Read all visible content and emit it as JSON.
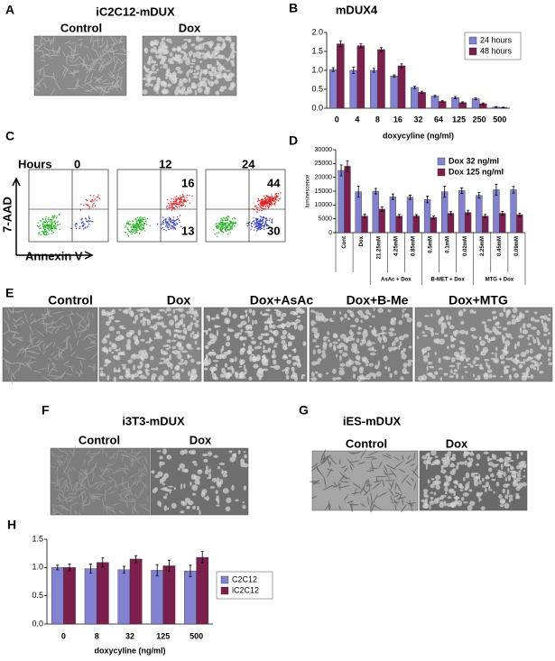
{
  "figure": {
    "panels": [
      "A",
      "B",
      "C",
      "D",
      "E",
      "F",
      "G",
      "H"
    ],
    "a": {
      "title": "iC2C12-mDUX",
      "labels": [
        "Control",
        "Dox"
      ]
    },
    "c": {
      "hours_label": "Hours",
      "hours": [
        0,
        12,
        24
      ],
      "upper_right": [
        16,
        44
      ],
      "lower_right": [
        13,
        30
      ],
      "y_label": "7-AAD",
      "x_label": "Annexin V"
    },
    "e": {
      "labels": [
        "Control",
        "Dox",
        "Dox+AsAc",
        "Dox+B-Me",
        "Dox+MTG"
      ]
    },
    "f": {
      "title": "i3T3-mDUX",
      "labels": [
        "Control",
        "Dox"
      ]
    },
    "g": {
      "title": "iES-mDUX",
      "labels": [
        "Control",
        "Dox"
      ]
    }
  },
  "chart_data": [
    {
      "type": "bar",
      "title": "mDUX4",
      "x_label": "doxycyline (ng/ml)",
      "categories": [
        "0",
        "4",
        "8",
        "16",
        "32",
        "64",
        "125",
        "250",
        "500"
      ],
      "series": [
        {
          "name": "24 hours",
          "color": "#8282d2",
          "values": [
            1.02,
            1.0,
            1.0,
            0.85,
            0.55,
            0.32,
            0.28,
            0.25,
            0.03
          ],
          "errors": [
            0.05,
            0.08,
            0.05,
            0.03,
            0.03,
            0.02,
            0.03,
            0.02,
            0.01
          ]
        },
        {
          "name": "48 hours",
          "color": "#7d1f4c",
          "values": [
            1.7,
            1.65,
            1.55,
            1.12,
            0.42,
            0.18,
            0.15,
            0.12,
            0.02
          ],
          "errors": [
            0.08,
            0.05,
            0.05,
            0.05,
            0.03,
            0.02,
            0.02,
            0.02,
            0.01
          ]
        }
      ],
      "ylim": [
        0,
        2
      ],
      "yticks": [
        {
          "value": 0,
          "label": "0.0"
        },
        0.5,
        {
          "value": 1,
          "label": "1.0"
        },
        1.5,
        {
          "value": 2,
          "label": "2.0"
        }
      ]
    },
    {
      "type": "bar",
      "y_label": "luminescence",
      "categories": [
        "Cont",
        "Dox",
        "21.25mM",
        "4.25mM",
        "0.85mM",
        "0.5mM",
        "0.1mM",
        "0.02mM",
        "2.25mM",
        "0.45mM",
        "0.09mM"
      ],
      "groups": [
        "AsAc + Dox",
        "B-MET + Dox",
        "MTG + Dox"
      ],
      "series": [
        {
          "name": "Dox 32 ng/ml",
          "color": "#8282d2",
          "values": [
            22500,
            14800,
            15000,
            13000,
            12800,
            12000,
            14800,
            15200,
            13500,
            15500,
            15500
          ],
          "errors": [
            2000,
            2000,
            1000,
            1000,
            800,
            1200,
            2000,
            1000,
            1000,
            2000,
            1200
          ]
        },
        {
          "name": "Dox 125 ng/ml",
          "color": "#7d1f4c",
          "values": [
            24000,
            6000,
            8500,
            6000,
            6000,
            5500,
            7000,
            7300,
            6000,
            7000,
            6500
          ],
          "errors": [
            2000,
            700,
            800,
            600,
            500,
            500,
            600,
            800,
            600,
            700,
            600
          ]
        }
      ],
      "ylim": [
        0,
        30000
      ],
      "yticks": [
        0,
        5000,
        10000,
        15000,
        20000,
        25000,
        30000
      ]
    },
    {
      "type": "bar",
      "x_label": "doxycyline (ng/ml)",
      "categories": [
        "0",
        "8",
        "32",
        "125",
        "500"
      ],
      "series": [
        {
          "name": "C2C12",
          "color": "#8282d2",
          "values": [
            1.0,
            0.98,
            0.96,
            0.95,
            0.94
          ],
          "errors": [
            0.04,
            0.08,
            0.06,
            0.1,
            0.1
          ]
        },
        {
          "name": "iC2C12",
          "color": "#7d1f4c",
          "values": [
            1.0,
            1.09,
            1.15,
            1.03,
            1.18
          ],
          "errors": [
            0.06,
            0.08,
            0.06,
            0.1,
            0.1
          ]
        }
      ],
      "ylim": [
        0,
        1.5
      ],
      "yticks": [
        {
          "value": 0,
          "label": "0.0"
        },
        0.5,
        {
          "value": 1,
          "label": "1.0"
        },
        1.5
      ]
    }
  ]
}
